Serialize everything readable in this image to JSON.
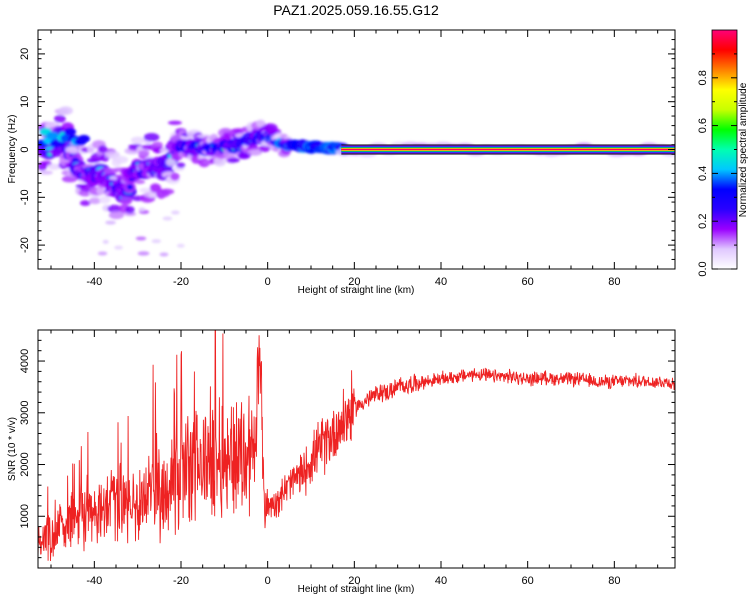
{
  "title": "PAZ1.2025.059.16.55.G12",
  "chart_data": [
    {
      "type": "heatmap",
      "xlabel": "Height of straight line (km)",
      "ylabel": "Frequency (Hz)",
      "xlim": [
        -53,
        94
      ],
      "ylim": [
        -25,
        25
      ],
      "xticks": [
        -40,
        -20,
        0,
        20,
        40,
        60,
        80
      ],
      "yticks": [
        -20,
        -10,
        0,
        10,
        20
      ],
      "colorbar": {
        "label": "Normalized spectral amplitude",
        "range": [
          0,
          1
        ],
        "ticks": [
          0.0,
          0.2,
          0.4,
          0.6,
          0.8
        ],
        "colormap": [
          "#ffffff",
          "#e0c8ff",
          "#9a00ff",
          "#2a00ff",
          "#0000ff",
          "#00c8ff",
          "#00ffb0",
          "#00ff00",
          "#c8ff00",
          "#ffff00",
          "#ff8000",
          "#ff0000",
          "#ff0078"
        ]
      },
      "ridge": [
        {
          "x": -50,
          "y": 3
        },
        {
          "x": -47,
          "y": 2.5
        },
        {
          "x": -44,
          "y": -4
        },
        {
          "x": -41,
          "y": -5.5
        },
        {
          "x": -38,
          "y": -5
        },
        {
          "x": -36,
          "y": -7
        },
        {
          "x": -33,
          "y": -9
        },
        {
          "x": -30,
          "y": -4
        },
        {
          "x": -27,
          "y": -4
        },
        {
          "x": -24,
          "y": -3.5
        },
        {
          "x": -21,
          "y": 1
        },
        {
          "x": -18,
          "y": 0.5
        },
        {
          "x": -14,
          "y": 0
        },
        {
          "x": -10,
          "y": 0.5
        },
        {
          "x": -6,
          "y": 1
        },
        {
          "x": -3,
          "y": 2.5
        },
        {
          "x": 0,
          "y": 3
        },
        {
          "x": 4,
          "y": 1
        },
        {
          "x": 8,
          "y": 0.7
        },
        {
          "x": 12,
          "y": 0.5
        },
        {
          "x": 16,
          "y": 0.2
        },
        {
          "x": 20,
          "y": 0
        },
        {
          "x": 94,
          "y": 0
        }
      ]
    },
    {
      "type": "line",
      "xlabel": "Height of straight line (km)",
      "ylabel": "SNR (10 * v/v)",
      "xlim": [
        -53,
        94
      ],
      "ylim": [
        0,
        4600
      ],
      "xticks": [
        -40,
        -20,
        0,
        20,
        40,
        60,
        80
      ],
      "yticks": [
        1000,
        2000,
        3000,
        4000
      ],
      "color": "#ee2222",
      "series": [
        {
          "x": [
            -53,
            -50,
            -47,
            -44,
            -42,
            -40,
            -38,
            -36,
            -34,
            -32,
            -30,
            -28,
            -26,
            -24,
            -22,
            -20,
            -18,
            -16,
            -14,
            -12,
            -10,
            -8,
            -6,
            -4,
            -3,
            -2,
            -1.5,
            -1,
            0,
            2,
            4,
            6,
            8,
            10,
            12,
            14,
            16,
            18,
            20,
            22,
            24,
            26,
            28,
            30,
            33,
            36,
            40,
            44,
            48,
            52,
            56,
            60,
            64,
            68,
            72,
            76,
            80,
            84,
            88,
            92,
            94
          ],
          "y": [
            500,
            700,
            800,
            1000,
            1100,
            1000,
            1100,
            1300,
            1200,
            1300,
            1200,
            1400,
            1600,
            1500,
            1700,
            1800,
            1900,
            2000,
            2100,
            2200,
            2100,
            2200,
            2200,
            2300,
            2300,
            2500,
            3500,
            1500,
            1200,
            1300,
            1500,
            1700,
            1800,
            2100,
            2300,
            2500,
            2700,
            2900,
            3100,
            3200,
            3300,
            3400,
            3400,
            3500,
            3550,
            3600,
            3650,
            3700,
            3750,
            3700,
            3700,
            3650,
            3680,
            3650,
            3650,
            3600,
            3600,
            3620,
            3600,
            3600,
            3550
          ]
        }
      ]
    }
  ]
}
